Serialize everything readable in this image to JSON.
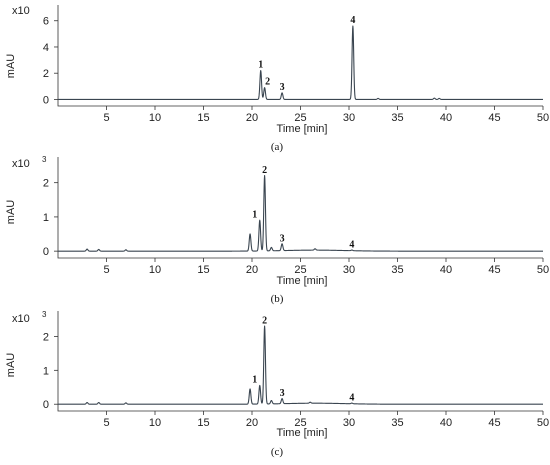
{
  "chart_data": [
    {
      "type": "line",
      "panel_label": "(a)",
      "scale_label": "x10",
      "scale_exponent": "",
      "ylabel": "mAU",
      "xlabel": "Time [min]",
      "xlim": [
        0,
        50
      ],
      "ylim": [
        -0.5,
        7.2
      ],
      "x_ticks": [
        "5",
        "10",
        "15",
        "20",
        "25",
        "30",
        "35",
        "40",
        "45",
        "50"
      ],
      "y_ticks": [
        "0",
        "2",
        "4",
        "6"
      ],
      "baseline": 0.0,
      "peaks": [
        {
          "label": "1",
          "x": 20.9,
          "y": 2.2
        },
        {
          "label": "2",
          "x": 21.3,
          "y": 0.9
        },
        {
          "label": "3",
          "x": 23.1,
          "y": 0.5
        },
        {
          "label": "4",
          "x": 30.4,
          "y": 5.6
        }
      ],
      "minor_peaks": [
        {
          "x": 33.0,
          "y": 0.08
        },
        {
          "x": 38.8,
          "y": 0.1
        },
        {
          "x": 39.3,
          "y": 0.08
        }
      ]
    },
    {
      "type": "line",
      "panel_label": "(b)",
      "scale_label": "x10",
      "scale_exponent": "3",
      "ylabel": "mAU",
      "xlabel": "Time [min]",
      "xlim": [
        0,
        50
      ],
      "ylim": [
        -0.2,
        2.75
      ],
      "x_ticks": [
        "5",
        "10",
        "15",
        "20",
        "25",
        "30",
        "35",
        "40",
        "45",
        "50"
      ],
      "y_ticks": [
        "0",
        "1",
        "2"
      ],
      "baseline": 0.0,
      "peaks": [
        {
          "label": "1",
          "x": 20.8,
          "y": 0.9
        },
        {
          "label": "2",
          "x": 21.3,
          "y": 2.2
        },
        {
          "label": "3",
          "x": 23.1,
          "y": 0.2
        },
        {
          "label": "4",
          "x": 30.3,
          "y": 0.02
        }
      ],
      "minor_peaks": [
        {
          "x": 3.0,
          "y": 0.06
        },
        {
          "x": 4.2,
          "y": 0.05
        },
        {
          "x": 7.0,
          "y": 0.04
        },
        {
          "x": 19.8,
          "y": 0.5
        },
        {
          "x": 22.0,
          "y": 0.1
        },
        {
          "x": 26.5,
          "y": 0.04
        }
      ]
    },
    {
      "type": "line",
      "panel_label": "(c)",
      "scale_label": "x10",
      "scale_exponent": "3",
      "ylabel": "mAU",
      "xlabel": "Time [min]",
      "xlim": [
        0,
        50
      ],
      "ylim": [
        -0.2,
        2.75
      ],
      "x_ticks": [
        "5",
        "10",
        "15",
        "20",
        "25",
        "30",
        "35",
        "40",
        "45",
        "50"
      ],
      "y_ticks": [
        "0",
        "1",
        "2"
      ],
      "baseline": 0.0,
      "peaks": [
        {
          "label": "1",
          "x": 20.8,
          "y": 0.55
        },
        {
          "label": "2",
          "x": 21.3,
          "y": 2.3
        },
        {
          "label": "3",
          "x": 23.1,
          "y": 0.15
        },
        {
          "label": "4",
          "x": 30.3,
          "y": 0.02
        }
      ],
      "minor_peaks": [
        {
          "x": 3.0,
          "y": 0.05
        },
        {
          "x": 4.2,
          "y": 0.05
        },
        {
          "x": 7.0,
          "y": 0.04
        },
        {
          "x": 19.8,
          "y": 0.45
        },
        {
          "x": 22.0,
          "y": 0.1
        },
        {
          "x": 26.0,
          "y": 0.03
        }
      ]
    }
  ]
}
